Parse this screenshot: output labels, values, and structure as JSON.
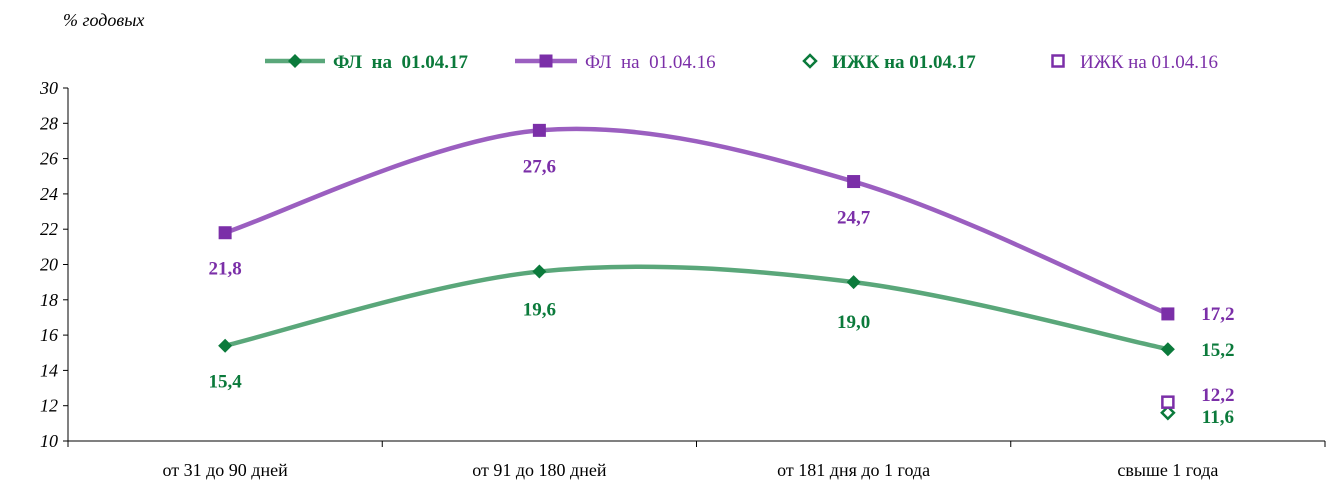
{
  "unit_label": "% годовых",
  "chart_data": {
    "type": "line",
    "categories": [
      "от 31 до 90 дней",
      "от 91 до 180 дней",
      "от 181 дня до 1 года",
      "свыше 1 года"
    ],
    "ylim": [
      10,
      30
    ],
    "yticks": [
      10,
      12,
      14,
      16,
      18,
      20,
      22,
      24,
      26,
      28,
      30
    ],
    "tick_labels": [
      "10",
      "12",
      "14",
      "16",
      "18",
      "20",
      "22",
      "24",
      "26",
      "28",
      "30"
    ],
    "grid": false,
    "legend_position": "top",
    "series": [
      {
        "name": "ФЛ  на  01.04.17",
        "kind": "line",
        "marker": "diamond",
        "color": "#5aa77a",
        "marker_color": "#0b7a3b",
        "label_color": "#0b7a3b",
        "bold_legend": true,
        "values": [
          15.4,
          19.6,
          19.0,
          15.2
        ],
        "labels": [
          "15,4",
          "19,6",
          "19,0",
          "15,2"
        ]
      },
      {
        "name": "ФЛ  на  01.04.16",
        "kind": "line",
        "marker": "square",
        "color": "#9b5fc0",
        "marker_color": "#7b2fa8",
        "label_color": "#7b2fa8",
        "bold_legend": false,
        "values": [
          21.8,
          27.6,
          24.7,
          17.2
        ],
        "labels": [
          "21,8",
          "27,6",
          "24,7",
          "17,2"
        ]
      },
      {
        "name": "ИЖК на 01.04.17",
        "kind": "point",
        "marker": "diamond-open",
        "color": "#0b7a3b",
        "marker_color": "#0b7a3b",
        "label_color": "#0b7a3b",
        "bold_legend": true,
        "values": [
          null,
          null,
          null,
          11.6
        ],
        "labels": [
          "",
          "",
          "",
          "11,6"
        ]
      },
      {
        "name": "ИЖК на 01.04.16",
        "kind": "point",
        "marker": "square-open",
        "color": "#7b2fa8",
        "marker_color": "#7b2fa8",
        "label_color": "#7b2fa8",
        "bold_legend": false,
        "values": [
          null,
          null,
          null,
          12.2
        ],
        "labels": [
          "",
          "",
          "",
          "12,2"
        ]
      }
    ]
  }
}
